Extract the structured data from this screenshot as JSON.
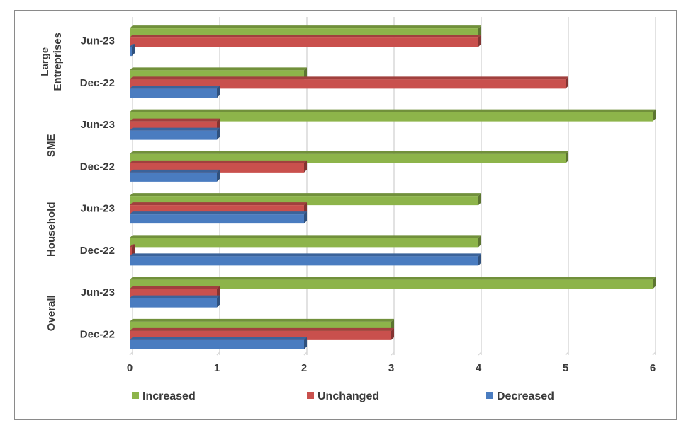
{
  "title": "",
  "colors": {
    "increased": "#8db44a",
    "unchanged": "#c9504d",
    "decreased": "#4a7cc0",
    "grid": "#d9d9d9",
    "axis_text": "#3a3a3a"
  },
  "chart_data": {
    "type": "bar",
    "orientation": "horizontal",
    "style": "3d",
    "xlim": [
      0,
      6
    ],
    "x_ticks": [
      "0",
      "1",
      "2",
      "3",
      "4",
      "5",
      "6"
    ],
    "grid": true,
    "legend_position": "bottom",
    "groups": [
      {
        "name": "Large Entreprises",
        "categories": [
          "Jun-23",
          "Dec-22"
        ]
      },
      {
        "name": "SME",
        "categories": [
          "Jun-23",
          "Dec-22"
        ]
      },
      {
        "name": "Household",
        "categories": [
          "Jun-23",
          "Dec-22"
        ]
      },
      {
        "name": "Overall",
        "categories": [
          "Jun-23",
          "Dec-22"
        ]
      }
    ],
    "categories": [
      "Large Entreprises Jun-23",
      "Large Entreprises Dec-22",
      "SME Jun-23",
      "SME Dec-22",
      "Household Jun-23",
      "Household Dec-22",
      "Overall Jun-23",
      "Overall Dec-22"
    ],
    "series": [
      {
        "name": "Increased",
        "values": [
          4,
          2,
          6,
          5,
          4,
          4,
          6,
          3
        ]
      },
      {
        "name": "Unchanged",
        "values": [
          4,
          5,
          1,
          2,
          2,
          0,
          1,
          3
        ]
      },
      {
        "name": "Decreased",
        "values": [
          0,
          1,
          1,
          1,
          2,
          4,
          1,
          2
        ]
      }
    ]
  }
}
